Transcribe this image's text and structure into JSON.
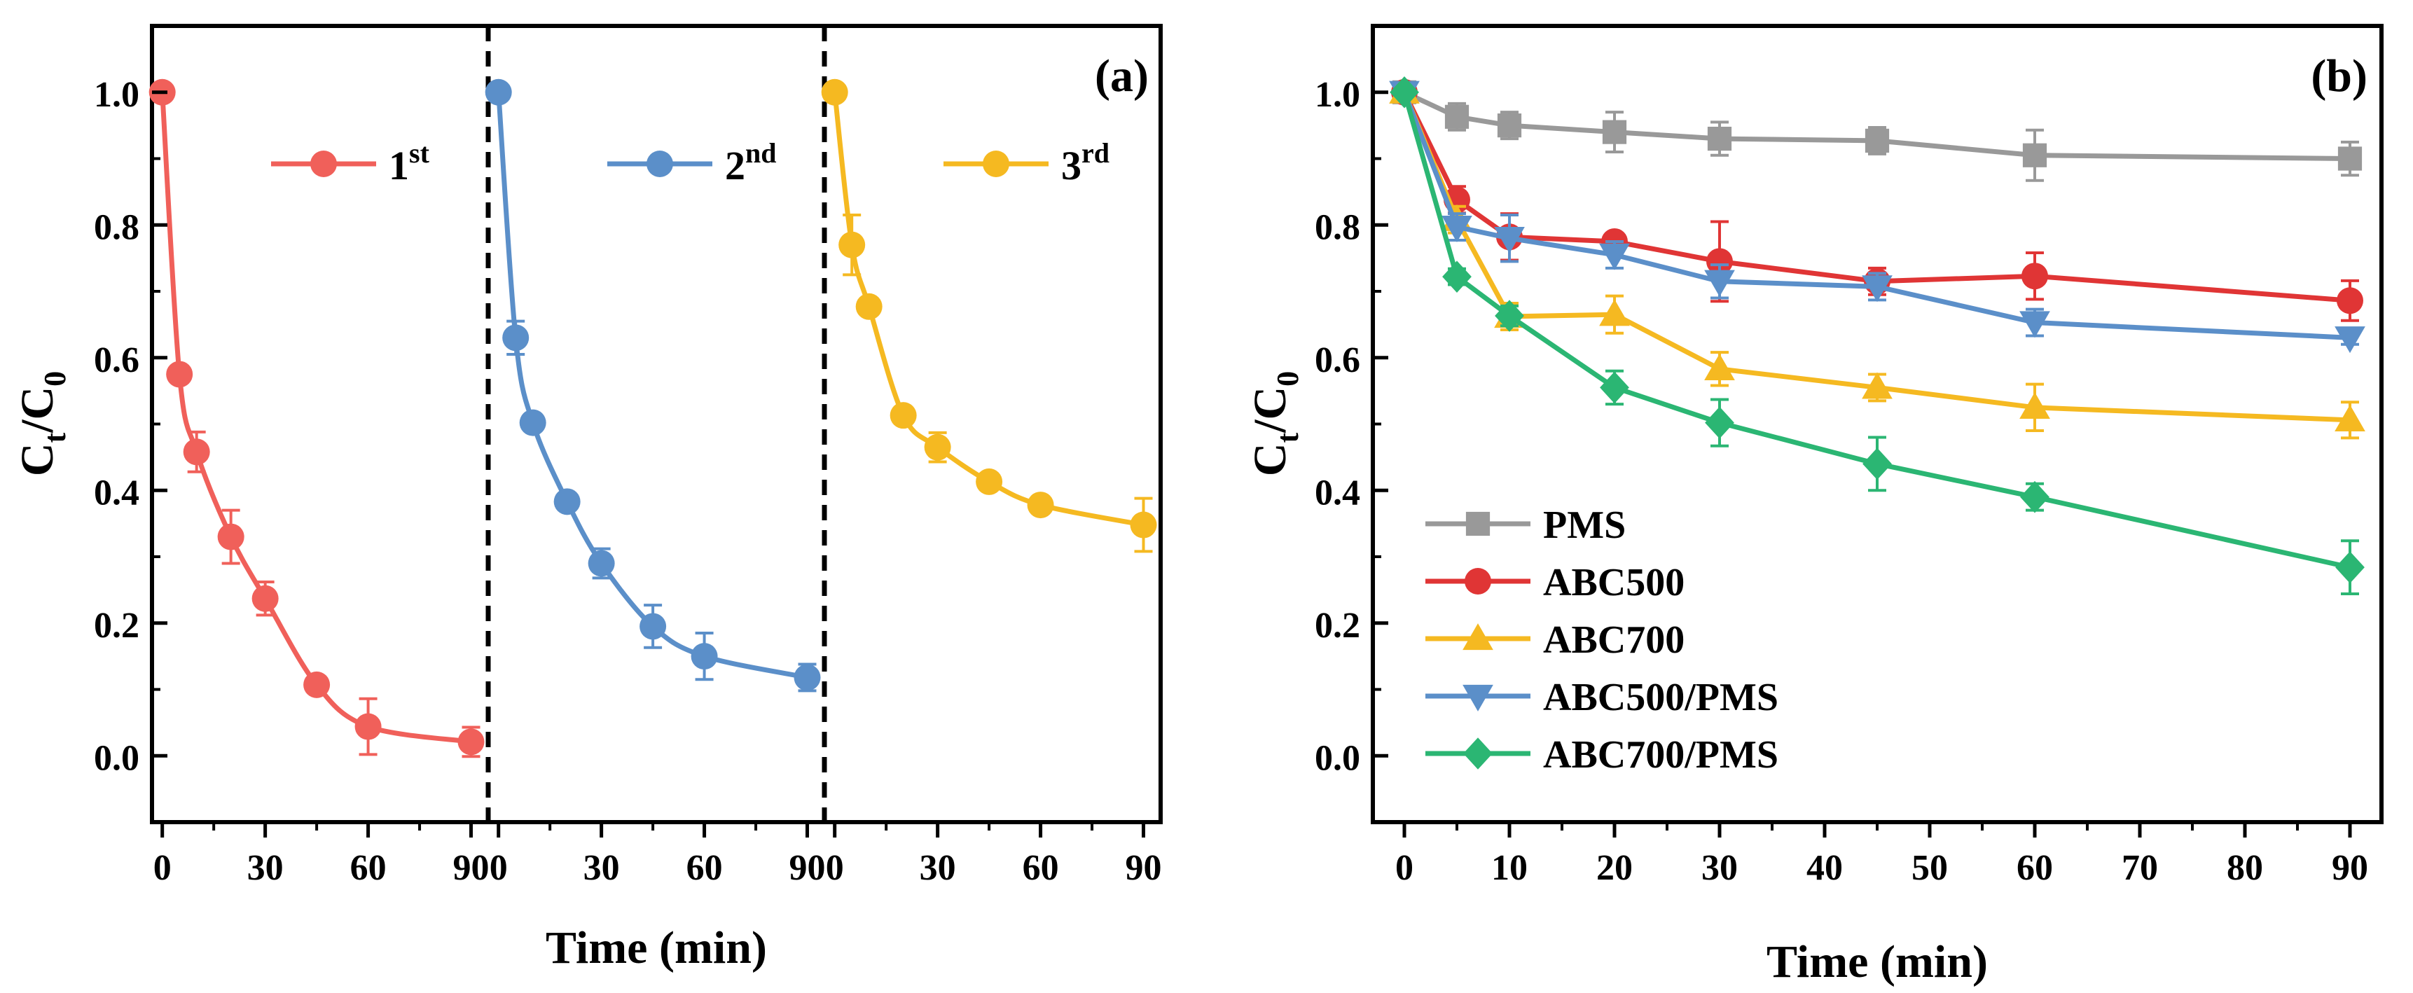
{
  "chart_data": [
    {
      "type": "line",
      "panel_label": "(a)",
      "title": "",
      "xlabel": "Time (min)",
      "ylabel": {
        "base": "C",
        "sub": "t",
        "sep": "/",
        "base2": "C",
        "sub2": "0"
      },
      "ylim": [
        -0.1,
        1.1
      ],
      "yticks": [
        "0.0",
        "0.2",
        "0.4",
        "0.6",
        "0.8",
        "1.0"
      ],
      "ytick_values": [
        0,
        0.2,
        0.4,
        0.6,
        0.8,
        1.0
      ],
      "x_per_segment_range": [
        -3,
        95
      ],
      "xticks": [
        "0",
        "30",
        "60",
        "90"
      ],
      "xtick_values": [
        0,
        30,
        60,
        90
      ],
      "legend_position": "top, one entry per segment",
      "series": [
        {
          "name": "1",
          "sup": "st",
          "color": "#F0605A",
          "x": [
            0,
            5,
            10,
            20,
            30,
            45,
            60,
            90
          ],
          "y": [
            1.0,
            0.575,
            0.458,
            0.33,
            0.237,
            0.107,
            0.044,
            0.021
          ],
          "err": [
            0,
            0.012,
            0.03,
            0.04,
            0.025,
            0.01,
            0.042,
            0.022
          ]
        },
        {
          "name": "2",
          "sup": "nd",
          "color": "#5B8FC9",
          "x": [
            0,
            5,
            10,
            20,
            30,
            45,
            60,
            90
          ],
          "y": [
            1.0,
            0.63,
            0.502,
            0.383,
            0.29,
            0.195,
            0.15,
            0.118
          ],
          "err": [
            0,
            0.025,
            0.012,
            0.012,
            0.022,
            0.032,
            0.035,
            0.02
          ]
        },
        {
          "name": "3",
          "sup": "rd",
          "color": "#F5B921",
          "x": [
            0,
            5,
            10,
            20,
            30,
            45,
            60,
            90
          ],
          "y": [
            1.0,
            0.77,
            0.677,
            0.513,
            0.465,
            0.413,
            0.378,
            0.348
          ],
          "err": [
            0,
            0.045,
            0.012,
            0.012,
            0.022,
            0.012,
            0.01,
            0.04
          ]
        }
      ]
    },
    {
      "type": "line",
      "panel_label": "(b)",
      "title": "",
      "xlabel": "Time (min)",
      "ylabel": {
        "base": "C",
        "sub": "t",
        "sep": "/",
        "base2": "C",
        "sub2": "0"
      },
      "xlim": [
        -3,
        93
      ],
      "ylim": [
        -0.1,
        1.1
      ],
      "xticks": [
        "0",
        "10",
        "20",
        "30",
        "40",
        "50",
        "60",
        "70",
        "80",
        "90"
      ],
      "xtick_values": [
        0,
        10,
        20,
        30,
        40,
        50,
        60,
        70,
        80,
        90
      ],
      "yticks": [
        "0.0",
        "0.2",
        "0.4",
        "0.6",
        "0.8",
        "1.0"
      ],
      "ytick_values": [
        0,
        0.2,
        0.4,
        0.6,
        0.8,
        1.0
      ],
      "legend_position": "lower-left",
      "series": [
        {
          "name": "PMS",
          "marker": "square",
          "color": "#999999",
          "x": [
            0,
            5,
            10,
            20,
            30,
            45,
            60,
            90
          ],
          "y": [
            1.0,
            0.963,
            0.95,
            0.94,
            0.93,
            0.927,
            0.905,
            0.9
          ],
          "err": [
            0,
            0.02,
            0.02,
            0.03,
            0.025,
            0.02,
            0.038,
            0.025
          ]
        },
        {
          "name": "ABC500",
          "marker": "circle",
          "color": "#E03535",
          "x": [
            0,
            5,
            10,
            20,
            30,
            45,
            60,
            90
          ],
          "y": [
            1.0,
            0.838,
            0.782,
            0.775,
            0.745,
            0.715,
            0.723,
            0.686
          ],
          "err": [
            0,
            0.02,
            0.035,
            0.01,
            0.06,
            0.02,
            0.035,
            0.03
          ]
        },
        {
          "name": "ABC700",
          "marker": "triangle-up",
          "color": "#F5B921",
          "x": [
            0,
            5,
            10,
            20,
            30,
            45,
            60,
            90
          ],
          "y": [
            1.0,
            0.808,
            0.662,
            0.665,
            0.583,
            0.555,
            0.525,
            0.506
          ],
          "err": [
            0,
            0.02,
            0.02,
            0.028,
            0.025,
            0.02,
            0.035,
            0.027
          ]
        },
        {
          "name": "ABC500/PMS",
          "marker": "triangle-down",
          "color": "#5B8FC9",
          "x": [
            0,
            5,
            10,
            20,
            30,
            45,
            60,
            90
          ],
          "y": [
            1.0,
            0.797,
            0.78,
            0.755,
            0.715,
            0.707,
            0.653,
            0.63
          ],
          "err": [
            0,
            0.02,
            0.035,
            0.02,
            0.025,
            0.02,
            0.02,
            0.01
          ]
        },
        {
          "name": "ABC700/PMS",
          "marker": "diamond",
          "color": "#2BB673",
          "x": [
            0,
            5,
            10,
            20,
            30,
            45,
            60,
            90
          ],
          "y": [
            1.0,
            0.722,
            0.663,
            0.555,
            0.502,
            0.44,
            0.39,
            0.284
          ],
          "err": [
            0,
            0.012,
            0.015,
            0.025,
            0.035,
            0.04,
            0.02,
            0.04
          ]
        }
      ]
    }
  ]
}
